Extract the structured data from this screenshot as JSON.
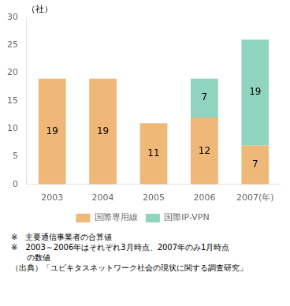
{
  "chart_data": {
    "type": "bar",
    "stacked": true,
    "categories": [
      "2003",
      "2004",
      "2005",
      "2006",
      "2007(年)"
    ],
    "series": [
      {
        "name": "国際専用線",
        "color": "#F0B878",
        "values": [
          19,
          19,
          11,
          12,
          7
        ]
      },
      {
        "name": "国際IP-VPN",
        "color": "#90D4C0",
        "values": [
          0,
          0,
          0,
          7,
          19
        ]
      }
    ],
    "ylabel": "（社）",
    "ylim": [
      0,
      30
    ],
    "yticks": [
      0,
      5,
      10,
      15,
      20,
      25,
      30
    ],
    "grid": false,
    "legend": "bottom",
    "data_labels": true,
    "annotations": [
      "※　主要通信事業者の合算値",
      "※　2003～2006年はそれぞれ3月時点、2007年のみ1月時点",
      "　　の数値",
      "（出典）「ユビキタスネットワーク社会の現状に関する調査研究」"
    ]
  }
}
